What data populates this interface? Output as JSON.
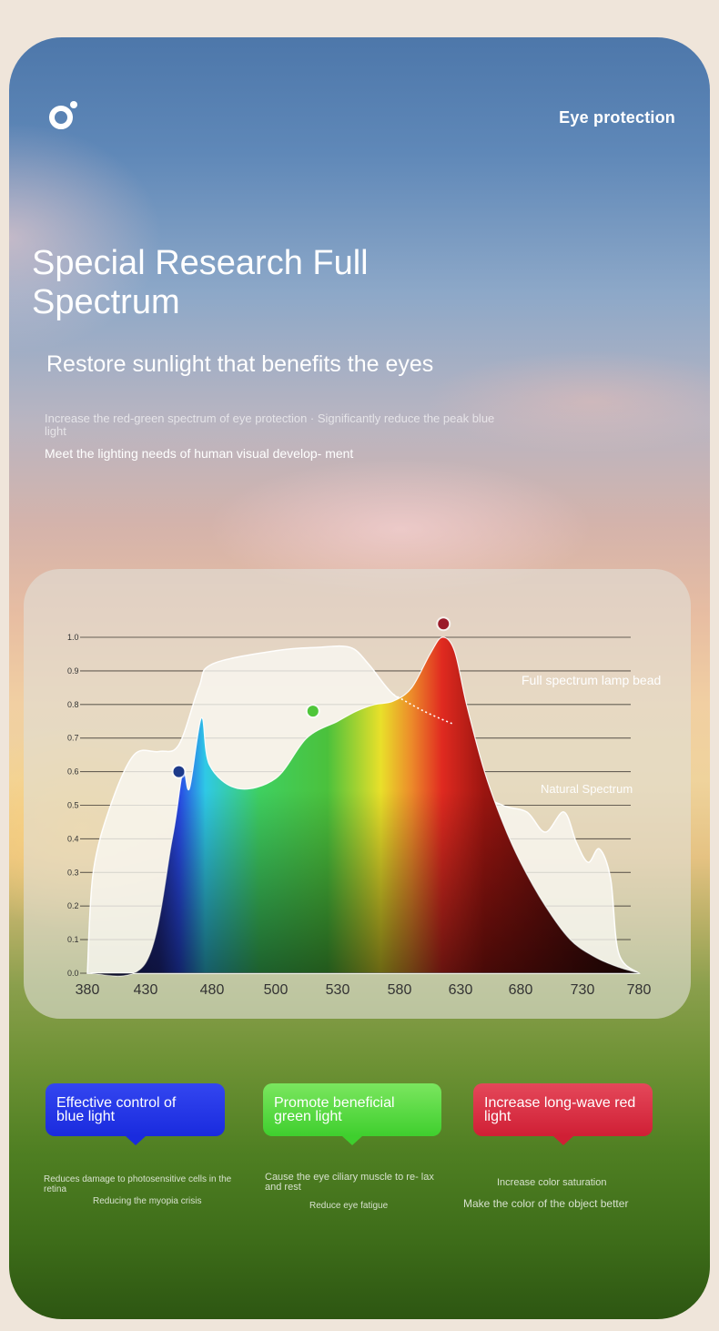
{
  "header": {
    "logo_icon": "ring-logo-icon",
    "tag": "Eye protection"
  },
  "hero": {
    "title": "Special Research Full Spectrum",
    "subtitle": "Restore sunlight that benefits the eyes",
    "desc_1": "Increase the red-green spectrum of eye protection · Significantly reduce the peak blue light",
    "desc_2": "Meet the lighting needs of human visual develop- ment"
  },
  "chart_data": {
    "type": "area",
    "xlabel": "",
    "ylabel": "",
    "x_ticks": [
      380,
      430,
      480,
      500,
      530,
      580,
      630,
      680,
      730,
      780
    ],
    "y_ticks": [
      "0.0",
      "0.1",
      "0.2",
      "0.3",
      "0.4",
      "0.5",
      "0.6",
      "0.7",
      "0.8",
      "0.9",
      "1.0"
    ],
    "ylim": [
      0,
      1
    ],
    "grid": true,
    "series": [
      {
        "name": "Full spectrum lamp bead",
        "points": [
          [
            380,
            0.0
          ],
          [
            430,
            0.03
          ],
          [
            450,
            0.4
          ],
          [
            458,
            0.6
          ],
          [
            463,
            0.55
          ],
          [
            472,
            0.76
          ],
          [
            478,
            0.62
          ],
          [
            488,
            0.55
          ],
          [
            500,
            0.58
          ],
          [
            515,
            0.7
          ],
          [
            530,
            0.75
          ],
          [
            545,
            0.78
          ],
          [
            560,
            0.8
          ],
          [
            575,
            0.81
          ],
          [
            590,
            0.85
          ],
          [
            605,
            0.95
          ],
          [
            615,
            1.0
          ],
          [
            625,
            0.96
          ],
          [
            635,
            0.8
          ],
          [
            650,
            0.6
          ],
          [
            665,
            0.45
          ],
          [
            680,
            0.33
          ],
          [
            700,
            0.2
          ],
          [
            720,
            0.1
          ],
          [
            740,
            0.05
          ],
          [
            760,
            0.02
          ],
          [
            780,
            0.0
          ]
        ]
      },
      {
        "name": "Natural Spectrum",
        "points": [
          [
            380,
            0.0
          ],
          [
            385,
            0.3
          ],
          [
            400,
            0.5
          ],
          [
            420,
            0.65
          ],
          [
            440,
            0.66
          ],
          [
            455,
            0.68
          ],
          [
            470,
            0.85
          ],
          [
            480,
            0.92
          ],
          [
            500,
            0.96
          ],
          [
            520,
            0.97
          ],
          [
            540,
            0.97
          ],
          [
            555,
            0.92
          ],
          [
            575,
            0.83
          ],
          [
            600,
            0.78
          ],
          [
            625,
            0.74
          ],
          [
            645,
            0.55
          ],
          [
            665,
            0.5
          ],
          [
            685,
            0.48
          ],
          [
            700,
            0.42
          ],
          [
            715,
            0.48
          ],
          [
            725,
            0.39
          ],
          [
            735,
            0.33
          ],
          [
            745,
            0.37
          ],
          [
            755,
            0.28
          ],
          [
            762,
            0.06
          ],
          [
            780,
            0.0
          ]
        ]
      }
    ],
    "markers": [
      {
        "x": 455,
        "y": 0.6,
        "color": "#1d3a8a"
      },
      {
        "x": 518,
        "y": 0.78,
        "color": "#4fc63a"
      },
      {
        "x": 616,
        "y": 1.04,
        "color": "#9b1b2a"
      }
    ],
    "legend": {
      "full_spectrum": "Full spectrum lamp bead",
      "natural": "Natural Spectrum"
    }
  },
  "features": {
    "blue": {
      "label_1": "Effective control of",
      "label_2": "blue light",
      "color": "#2637e6"
    },
    "green": {
      "label_1": "Promote beneficial",
      "label_2": "green light",
      "color": "#5ad944"
    },
    "red": {
      "label_1": "Increase long-wave red",
      "label_2": "light",
      "color": "#da3045"
    }
  },
  "notes": {
    "blue_1": "Reduces damage to photosensitive cells in the retina",
    "blue_2": "Reducing the myopia crisis",
    "green_1": "Cause the eye ciliary muscle to re- lax and rest",
    "green_2": "Reduce eye fatigue",
    "red_1": "Increase color saturation",
    "red_2": "Make the color of the object better"
  }
}
